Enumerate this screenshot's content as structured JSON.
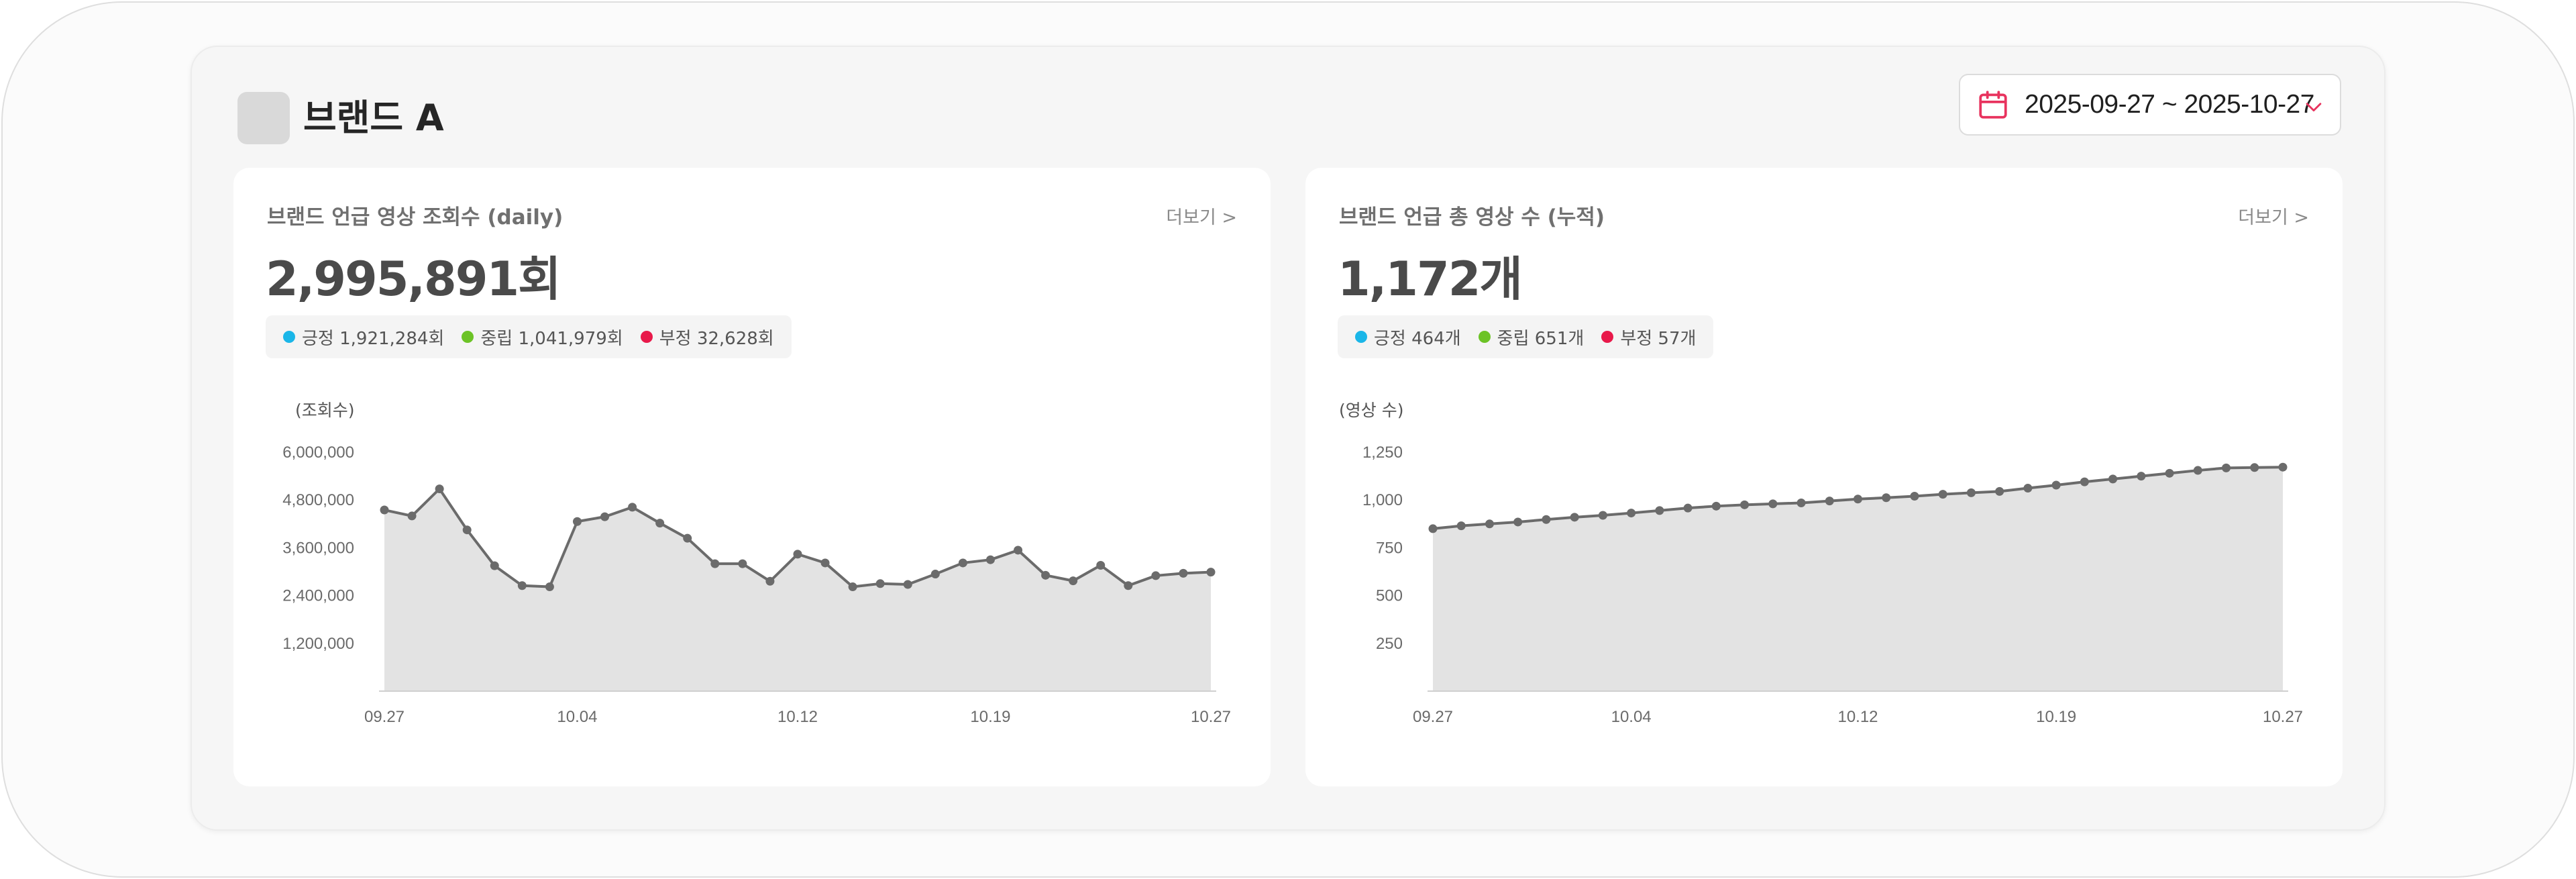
{
  "brand": {
    "name": "브랜드 A"
  },
  "date_range": {
    "label": "2025-09-27 ~ 2025-10-27",
    "icon": "calendar-icon",
    "accent": "#e8335e"
  },
  "cards": [
    {
      "title": "브랜드 언급 영상 조회수 (daily)",
      "more": "더보기 >",
      "total": "2,995,891회",
      "legend": [
        {
          "label": "긍정 1,921,284회",
          "color": "#1ab6e8"
        },
        {
          "label": "중립 1,041,979회",
          "color": "#6cc326"
        },
        {
          "label": "부정 32,628회",
          "color": "#e8194a"
        }
      ]
    },
    {
      "title": "브랜드 언급 총 영상 수 (누적)",
      "more": "더보기 >",
      "total": "1,172개",
      "legend": [
        {
          "label": "긍정 464개",
          "color": "#1ab6e8"
        },
        {
          "label": "중립 651개",
          "color": "#6cc326"
        },
        {
          "label": "부정 57개",
          "color": "#e8194a"
        }
      ]
    }
  ],
  "chart_data": [
    {
      "type": "area",
      "ylabel": "(조회수)",
      "ylim": [
        0,
        6000000
      ],
      "yticks": [
        1200000,
        2400000,
        3600000,
        4800000,
        6000000
      ],
      "ytick_labels": [
        "1,200,000",
        "2,400,000",
        "3,600,000",
        "4,800,000",
        "6,000,000"
      ],
      "xtick_labels": [
        "09.27",
        "10.04",
        "10.12",
        "10.19",
        "10.27"
      ],
      "xtick_index": [
        0,
        7,
        15,
        22,
        30
      ],
      "x": [
        "09.27",
        "09.28",
        "09.29",
        "09.30",
        "10.01",
        "10.02",
        "10.03",
        "10.04",
        "10.05",
        "10.06",
        "10.07",
        "10.08",
        "10.09",
        "10.10",
        "10.11",
        "10.12",
        "10.13",
        "10.14",
        "10.15",
        "10.16",
        "10.17",
        "10.18",
        "10.19",
        "10.20",
        "10.21",
        "10.22",
        "10.23",
        "10.24",
        "10.25",
        "10.26",
        "10.27"
      ],
      "values": [
        4550000,
        4400000,
        5080000,
        4050000,
        3150000,
        2650000,
        2620000,
        4260000,
        4380000,
        4620000,
        4220000,
        3840000,
        3200000,
        3200000,
        2760000,
        3440000,
        3220000,
        2620000,
        2700000,
        2680000,
        2940000,
        3220000,
        3300000,
        3540000,
        2910000,
        2770000,
        3160000,
        2650000,
        2900000,
        2960000,
        2990000
      ],
      "grid": false,
      "colors": {
        "line": "#6b6b6b",
        "fill": "#e3e3e3",
        "point": "#6b6b6b"
      }
    },
    {
      "type": "area",
      "ylabel": "(영상 수)",
      "ylim": [
        0,
        1250
      ],
      "yticks": [
        250,
        500,
        750,
        1000,
        1250
      ],
      "ytick_labels": [
        "250",
        "500",
        "750",
        "1,000",
        "1,250"
      ],
      "xtick_labels": [
        "09.27",
        "10.04",
        "10.12",
        "10.19",
        "10.27"
      ],
      "xtick_index": [
        0,
        7,
        15,
        22,
        30
      ],
      "x": [
        "09.27",
        "09.28",
        "09.29",
        "09.30",
        "10.01",
        "10.02",
        "10.03",
        "10.04",
        "10.05",
        "10.06",
        "10.07",
        "10.08",
        "10.09",
        "10.10",
        "10.11",
        "10.12",
        "10.13",
        "10.14",
        "10.15",
        "10.16",
        "10.17",
        "10.18",
        "10.19",
        "10.20",
        "10.21",
        "10.22",
        "10.23",
        "10.24",
        "10.25",
        "10.26",
        "10.27"
      ],
      "values": [
        850,
        865,
        875,
        885,
        898,
        910,
        920,
        932,
        945,
        958,
        968,
        975,
        980,
        985,
        995,
        1005,
        1012,
        1020,
        1030,
        1038,
        1045,
        1062,
        1078,
        1095,
        1110,
        1125,
        1140,
        1155,
        1168,
        1170,
        1172
      ],
      "grid": false,
      "colors": {
        "line": "#6b6b6b",
        "fill": "#e3e3e3",
        "point": "#6b6b6b"
      }
    }
  ]
}
